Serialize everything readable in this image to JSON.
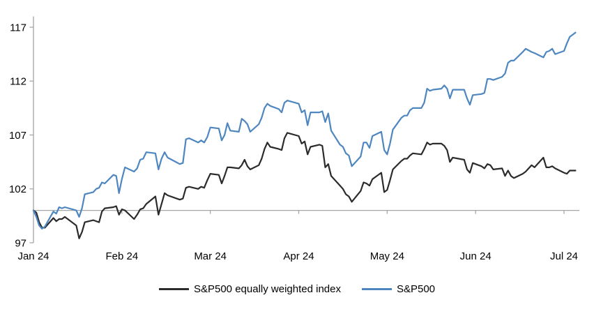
{
  "colors": {
    "background": "#ffffff",
    "axis": "#a6a6a6",
    "text": "#000000",
    "equal_weight_line": "#2b2b2b",
    "sp500_line": "#4e86c0"
  },
  "chart_data": {
    "type": "line",
    "title": "",
    "xlabel": "",
    "ylabel": "",
    "ylim": [
      97,
      118
    ],
    "y_ticks": [
      97,
      102,
      107,
      112,
      117
    ],
    "baseline_value": 100,
    "grid": "off",
    "legend_position": "bottom-center",
    "x_tick_labels": [
      "Jan 24",
      "Feb 24",
      "Mar 24",
      "Apr 24",
      "May 24",
      "Jun 24",
      "Jul 24"
    ],
    "x_dates": [
      "12-29",
      "01-02",
      "01-03",
      "01-04",
      "01-05",
      "01-08",
      "01-09",
      "01-10",
      "01-11",
      "01-12",
      "01-16",
      "01-17",
      "01-18",
      "01-19",
      "01-22",
      "01-23",
      "01-24",
      "01-25",
      "01-26",
      "01-29",
      "01-30",
      "01-31",
      "02-01",
      "02-02",
      "02-05",
      "02-06",
      "02-07",
      "02-08",
      "02-09",
      "02-12",
      "02-13",
      "02-14",
      "02-15",
      "02-16",
      "02-20",
      "02-21",
      "02-22",
      "02-23",
      "02-26",
      "02-27",
      "02-28",
      "02-29",
      "03-01",
      "03-04",
      "03-05",
      "03-06",
      "03-07",
      "03-08",
      "03-11",
      "03-12",
      "03-13",
      "03-14",
      "03-15",
      "03-18",
      "03-19",
      "03-20",
      "03-21",
      "03-22",
      "03-25",
      "03-26",
      "03-27",
      "03-28",
      "04-01",
      "04-02",
      "04-03",
      "04-04",
      "04-05",
      "04-08",
      "04-09",
      "04-10",
      "04-11",
      "04-12",
      "04-15",
      "04-16",
      "04-17",
      "04-18",
      "04-19",
      "04-22",
      "04-23",
      "04-24",
      "04-25",
      "04-26",
      "04-29",
      "04-30",
      "05-01",
      "05-02",
      "05-03",
      "05-06",
      "05-07",
      "05-08",
      "05-09",
      "05-10",
      "05-13",
      "05-14",
      "05-15",
      "05-16",
      "05-17",
      "05-20",
      "05-21",
      "05-22",
      "05-23",
      "05-24",
      "05-28",
      "05-29",
      "05-30",
      "05-31",
      "06-03",
      "06-04",
      "06-05",
      "06-06",
      "06-07",
      "06-10",
      "06-11",
      "06-12",
      "06-13",
      "06-14",
      "06-17",
      "06-18",
      "06-20",
      "06-21",
      "06-24",
      "06-25",
      "06-26",
      "06-27",
      "06-28",
      "07-01",
      "07-02",
      "07-03",
      "07-05"
    ],
    "series": [
      {
        "name": "S&P500 equally weighted index",
        "color": "#2b2b2b",
        "values": [
          100.0,
          99.8,
          98.9,
          98.4,
          98.4,
          99.3,
          99.0,
          99.2,
          99.2,
          99.4,
          98.6,
          97.4,
          98.0,
          98.9,
          99.1,
          99.0,
          98.9,
          99.9,
          100.2,
          100.3,
          100.4,
          99.6,
          100.1,
          100.0,
          99.2,
          99.6,
          100.1,
          100.2,
          100.6,
          101.3,
          99.6,
          100.6,
          101.6,
          101.4,
          101.0,
          101.1,
          102.1,
          102.2,
          102.0,
          102.2,
          102.1,
          102.8,
          103.4,
          103.3,
          102.5,
          103.2,
          104.0,
          104.0,
          103.9,
          104.2,
          104.7,
          104.1,
          103.8,
          104.2,
          104.8,
          105.7,
          106.3,
          105.9,
          105.7,
          105.6,
          106.7,
          107.2,
          106.9,
          106.2,
          106.4,
          105.2,
          105.9,
          106.1,
          106.0,
          104.0,
          104.3,
          103.2,
          102.3,
          102.0,
          101.5,
          101.3,
          100.8,
          101.8,
          102.6,
          102.5,
          102.3,
          102.9,
          103.5,
          101.7,
          101.9,
          102.8,
          103.8,
          104.6,
          104.8,
          104.8,
          105.1,
          105.3,
          105.2,
          105.7,
          106.3,
          106.1,
          106.2,
          106.2,
          106.0,
          105.6,
          104.5,
          104.9,
          104.7,
          103.8,
          103.5,
          104.4,
          104.1,
          103.9,
          104.3,
          104.2,
          103.8,
          103.9,
          103.2,
          103.7,
          103.2,
          103.0,
          103.4,
          103.6,
          104.2,
          104.0,
          104.9,
          104.0,
          104.0,
          104.1,
          103.9,
          103.5,
          103.4,
          103.7,
          103.7
        ]
      },
      {
        "name": "S&P500",
        "color": "#4e86c0",
        "values": [
          100.0,
          99.4,
          98.6,
          98.3,
          98.5,
          99.9,
          99.7,
          100.3,
          100.2,
          100.3,
          100.0,
          99.4,
          100.2,
          101.5,
          101.7,
          102.0,
          102.1,
          102.6,
          102.5,
          103.3,
          103.2,
          101.6,
          102.9,
          104.0,
          103.6,
          103.9,
          104.7,
          104.8,
          105.4,
          105.3,
          103.8,
          104.8,
          105.4,
          104.9,
          104.3,
          104.4,
          106.6,
          106.7,
          106.3,
          106.5,
          106.3,
          106.8,
          107.7,
          107.6,
          106.5,
          107.0,
          108.1,
          107.4,
          107.3,
          108.5,
          108.3,
          108.0,
          107.3,
          108.0,
          108.6,
          109.5,
          109.9,
          109.7,
          109.4,
          109.1,
          110.0,
          110.2,
          109.9,
          109.1,
          109.3,
          107.9,
          109.1,
          109.1,
          109.2,
          108.2,
          109.0,
          107.4,
          106.1,
          105.9,
          105.3,
          105.1,
          104.1,
          105.0,
          106.3,
          106.3,
          105.8,
          106.9,
          107.3,
          105.6,
          105.2,
          106.2,
          107.5,
          108.6,
          108.8,
          108.8,
          109.3,
          109.5,
          109.5,
          110.0,
          111.3,
          111.1,
          111.2,
          111.3,
          111.6,
          111.3,
          110.4,
          111.2,
          111.2,
          110.4,
          109.8,
          110.7,
          110.8,
          110.9,
          112.2,
          112.2,
          112.1,
          112.4,
          112.7,
          113.7,
          113.9,
          113.9,
          114.7,
          115.0,
          114.7,
          114.6,
          114.2,
          114.7,
          114.8,
          115.0,
          114.5,
          114.8,
          115.5,
          116.1,
          116.5
        ]
      }
    ]
  }
}
